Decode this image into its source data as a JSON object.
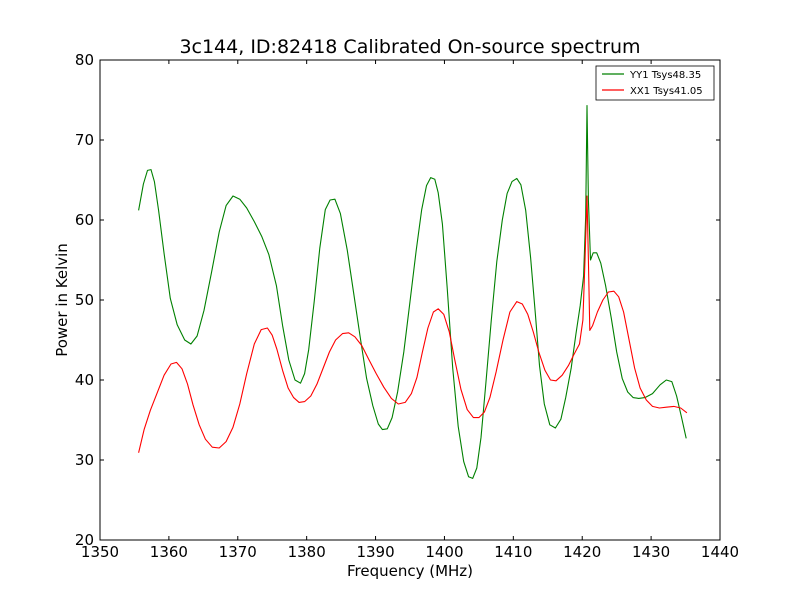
{
  "chart_data": {
    "type": "line",
    "title": "3c144, ID:82418 Calibrated On-source spectrum",
    "xlabel": "Frequency (MHz)",
    "ylabel": "Power in Kelvin",
    "xlim": [
      1350,
      1440
    ],
    "ylim": [
      20,
      80
    ],
    "xticks": [
      1350,
      1360,
      1370,
      1380,
      1390,
      1400,
      1410,
      1420,
      1430,
      1440
    ],
    "yticks": [
      20,
      30,
      40,
      50,
      60,
      70,
      80
    ],
    "grid": false,
    "legend_position": "top-right",
    "series": [
      {
        "name": "YY1 Tsys48.35",
        "color": "#008000",
        "x": [
          1355.6,
          1356.3,
          1356.9,
          1357.4,
          1357.9,
          1358.5,
          1359.3,
          1360.2,
          1361.2,
          1362.3,
          1363.2,
          1364.1,
          1365.1,
          1366.2,
          1367.3,
          1368.3,
          1369.3,
          1370.3,
          1371.3,
          1372.4,
          1373.5,
          1374.5,
          1375.6,
          1376.5,
          1377.4,
          1378.3,
          1379.1,
          1379.7,
          1380.3,
          1381.1,
          1381.9,
          1382.7,
          1383.4,
          1384.1,
          1384.9,
          1385.9,
          1386.8,
          1387.8,
          1388.7,
          1389.6,
          1390.4,
          1391.0,
          1391.7,
          1392.4,
          1393.2,
          1394.1,
          1395.0,
          1395.9,
          1396.7,
          1397.4,
          1398.0,
          1398.6,
          1399.1,
          1399.7,
          1400.4,
          1401.2,
          1402.0,
          1402.8,
          1403.5,
          1404.1,
          1404.7,
          1405.3,
          1406.0,
          1406.8,
          1407.6,
          1408.4,
          1409.1,
          1409.8,
          1410.5,
          1411.1,
          1411.8,
          1412.5,
          1413.2,
          1413.8,
          1414.5,
          1415.3,
          1416.1,
          1416.9,
          1417.6,
          1418.4,
          1419.1,
          1419.7,
          1420.2,
          1420.5,
          1420.7,
          1420.9,
          1421.2,
          1421.6,
          1422.1,
          1422.7,
          1423.4,
          1424.2,
          1425.0,
          1425.8,
          1426.6,
          1427.4,
          1428.2,
          1429.1,
          1430.2,
          1431.3,
          1432.2,
          1433.0,
          1433.7,
          1434.4,
          1435.1
        ],
        "values": [
          61.2,
          64.5,
          66.2,
          66.3,
          64.8,
          61.2,
          55.8,
          50.2,
          46.9,
          45.0,
          44.5,
          45.5,
          48.7,
          53.5,
          58.5,
          61.8,
          63.0,
          62.6,
          61.5,
          59.8,
          57.9,
          55.7,
          51.8,
          46.8,
          42.5,
          40.0,
          39.6,
          40.8,
          43.8,
          49.8,
          56.5,
          61.3,
          62.5,
          62.6,
          60.8,
          56.2,
          51.0,
          45.2,
          40.2,
          36.8,
          34.5,
          33.8,
          33.9,
          35.3,
          38.5,
          43.5,
          49.8,
          56.2,
          61.3,
          64.3,
          65.3,
          65.1,
          63.4,
          59.5,
          51.5,
          41.5,
          34.2,
          29.8,
          27.9,
          27.7,
          29.0,
          32.8,
          39.5,
          47.5,
          54.8,
          60.0,
          63.3,
          64.8,
          65.2,
          64.4,
          61.2,
          55.3,
          48.2,
          41.8,
          37.0,
          34.4,
          34.0,
          35.1,
          37.8,
          41.5,
          45.8,
          49.3,
          53.0,
          60.5,
          74.3,
          62.5,
          55.0,
          55.9,
          55.9,
          54.6,
          51.8,
          47.8,
          43.5,
          40.2,
          38.5,
          37.8,
          37.7,
          37.8,
          38.3,
          39.4,
          40.0,
          39.8,
          38.0,
          35.4,
          32.7
        ]
      },
      {
        "name": "XX1 Tsys41.05",
        "color": "#ff0000",
        "x": [
          1355.6,
          1356.4,
          1357.3,
          1358.3,
          1359.3,
          1360.3,
          1361.1,
          1361.9,
          1362.7,
          1363.5,
          1364.4,
          1365.3,
          1366.3,
          1367.3,
          1368.3,
          1369.3,
          1370.3,
          1371.3,
          1372.4,
          1373.4,
          1374.3,
          1375.0,
          1375.7,
          1376.5,
          1377.3,
          1378.1,
          1378.9,
          1379.7,
          1380.6,
          1381.5,
          1382.4,
          1383.3,
          1384.2,
          1385.2,
          1386.1,
          1387.0,
          1388.0,
          1389.0,
          1390.1,
          1391.2,
          1392.3,
          1393.3,
          1394.3,
          1395.2,
          1396.0,
          1396.8,
          1397.6,
          1398.4,
          1399.1,
          1399.9,
          1400.7,
          1401.5,
          1402.4,
          1403.3,
          1404.2,
          1405.0,
          1405.8,
          1406.6,
          1407.5,
          1408.5,
          1409.5,
          1410.5,
          1411.3,
          1412.1,
          1412.9,
          1413.7,
          1414.6,
          1415.4,
          1416.2,
          1417.1,
          1418.0,
          1418.8,
          1419.6,
          1420.1,
          1420.4,
          1420.7,
          1420.9,
          1421.1,
          1421.5,
          1422.2,
          1423.0,
          1423.8,
          1424.6,
          1425.3,
          1426.0,
          1426.8,
          1427.6,
          1428.4,
          1429.3,
          1430.2,
          1431.2,
          1432.2,
          1433.3,
          1434.3,
          1435.2
        ],
        "values": [
          30.9,
          33.8,
          36.2,
          38.4,
          40.6,
          42.0,
          42.2,
          41.4,
          39.5,
          36.9,
          34.4,
          32.6,
          31.6,
          31.5,
          32.3,
          34.1,
          37.0,
          40.8,
          44.5,
          46.3,
          46.5,
          45.6,
          43.8,
          41.2,
          39.0,
          37.8,
          37.2,
          37.3,
          38.0,
          39.5,
          41.5,
          43.5,
          45.0,
          45.8,
          45.9,
          45.4,
          44.3,
          42.6,
          40.8,
          39.1,
          37.7,
          37.0,
          37.2,
          38.3,
          40.3,
          43.5,
          46.5,
          48.5,
          48.9,
          48.2,
          46.0,
          42.5,
          38.8,
          36.3,
          35.3,
          35.3,
          36.0,
          37.8,
          41.0,
          45.0,
          48.5,
          49.8,
          49.5,
          48.2,
          46.0,
          43.5,
          41.2,
          40.0,
          39.9,
          40.6,
          41.8,
          43.2,
          44.5,
          47.5,
          55.0,
          63.0,
          55.0,
          46.2,
          46.8,
          48.5,
          50.0,
          51.0,
          51.1,
          50.4,
          48.5,
          45.0,
          41.5,
          39.0,
          37.5,
          36.7,
          36.5,
          36.6,
          36.7,
          36.5,
          35.9
        ]
      }
    ]
  }
}
